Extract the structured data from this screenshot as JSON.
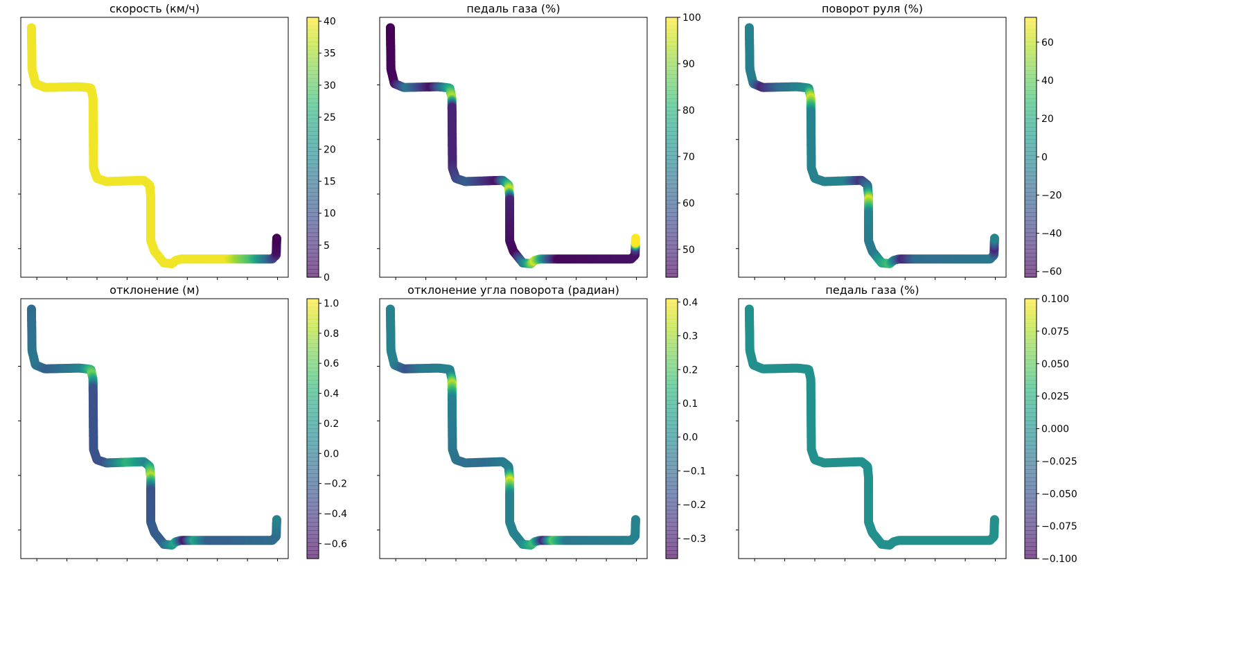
{
  "chart_data": [
    {
      "type": "scatter",
      "title": "скорость (км/ч)",
      "colormap": "viridis",
      "colorbar": {
        "min": 0,
        "max": 40.6,
        "ticks": [
          "0",
          "5",
          "10",
          "15",
          "20",
          "25",
          "30",
          "35",
          "40"
        ],
        "tick_values": [
          0,
          5,
          10,
          15,
          20,
          25,
          30,
          35,
          40
        ]
      },
      "color_profile": [
        [
          0,
          0.98
        ],
        [
          0.86,
          0.98
        ],
        [
          0.88,
          0.85
        ],
        [
          0.91,
          0.7
        ],
        [
          0.94,
          0.4
        ],
        [
          0.97,
          0.05
        ],
        [
          1.0,
          0.0
        ]
      ]
    },
    {
      "type": "scatter",
      "title": "педаль газа (%)",
      "colormap": "viridis",
      "colorbar": {
        "min": 44,
        "max": 100,
        "ticks": [
          "50",
          "60",
          "70",
          "80",
          "90",
          "100"
        ],
        "tick_values": [
          50,
          60,
          70,
          80,
          90,
          100
        ]
      },
      "color_profile": [
        [
          0,
          0.0
        ],
        [
          0.12,
          0.02
        ],
        [
          0.15,
          0.4
        ],
        [
          0.2,
          0.05
        ],
        [
          0.26,
          0.9
        ],
        [
          0.28,
          0.1
        ],
        [
          0.4,
          0.1
        ],
        [
          0.46,
          0.3
        ],
        [
          0.52,
          0.05
        ],
        [
          0.56,
          0.95
        ],
        [
          0.58,
          0.1
        ],
        [
          0.7,
          0.02
        ],
        [
          0.73,
          0.5
        ],
        [
          0.75,
          0.95
        ],
        [
          0.78,
          0.3
        ],
        [
          0.8,
          0.02
        ],
        [
          0.97,
          0.05
        ],
        [
          0.98,
          0.2
        ],
        [
          0.99,
          1.0
        ],
        [
          1.0,
          1.0
        ]
      ]
    },
    {
      "type": "scatter",
      "title": "поворот руля (%)",
      "colormap": "viridis",
      "colorbar": {
        "min": -63,
        "max": 73,
        "ticks": [
          "−60",
          "−40",
          "−20",
          "0",
          "20",
          "40",
          "60"
        ],
        "tick_values": [
          -60,
          -40,
          -20,
          0,
          20,
          40,
          60
        ]
      },
      "color_profile": [
        [
          0,
          0.45
        ],
        [
          0.12,
          0.42
        ],
        [
          0.14,
          0.1
        ],
        [
          0.18,
          0.35
        ],
        [
          0.24,
          0.5
        ],
        [
          0.26,
          0.95
        ],
        [
          0.29,
          0.45
        ],
        [
          0.5,
          0.45
        ],
        [
          0.53,
          0.15
        ],
        [
          0.56,
          0.45
        ],
        [
          0.58,
          0.95
        ],
        [
          0.61,
          0.45
        ],
        [
          0.7,
          0.4
        ],
        [
          0.74,
          0.7
        ],
        [
          0.77,
          0.1
        ],
        [
          0.8,
          0.35
        ],
        [
          0.96,
          0.4
        ],
        [
          0.98,
          0.1
        ],
        [
          1.0,
          0.45
        ]
      ]
    },
    {
      "type": "scatter",
      "title": "отклонение (м)",
      "colormap": "viridis",
      "colorbar": {
        "min": -0.7,
        "max": 1.03,
        "ticks": [
          "−0.6",
          "−0.4",
          "−0.2",
          "0.0",
          "0.2",
          "0.4",
          "0.6",
          "0.8",
          "1.0"
        ],
        "tick_values": [
          -0.6,
          -0.4,
          -0.2,
          0.0,
          0.2,
          0.4,
          0.6,
          0.8,
          1.0
        ]
      },
      "color_profile": [
        [
          0,
          0.35
        ],
        [
          0.12,
          0.4
        ],
        [
          0.15,
          0.3
        ],
        [
          0.22,
          0.45
        ],
        [
          0.25,
          0.8
        ],
        [
          0.28,
          0.25
        ],
        [
          0.45,
          0.25
        ],
        [
          0.5,
          0.65
        ],
        [
          0.54,
          0.45
        ],
        [
          0.57,
          0.9
        ],
        [
          0.6,
          0.25
        ],
        [
          0.72,
          0.3
        ],
        [
          0.75,
          0.6
        ],
        [
          0.77,
          0.05
        ],
        [
          0.79,
          0.6
        ],
        [
          0.82,
          0.3
        ],
        [
          0.97,
          0.35
        ],
        [
          1.0,
          0.45
        ]
      ]
    },
    {
      "type": "scatter",
      "title": "отклонение угла поворота (радиан)",
      "colormap": "viridis",
      "colorbar": {
        "min": -0.36,
        "max": 0.41,
        "ticks": [
          "−0.3",
          "−0.2",
          "−0.1",
          "0.0",
          "0.1",
          "0.2",
          "0.3",
          "0.4"
        ],
        "tick_values": [
          -0.3,
          -0.2,
          -0.1,
          0.0,
          0.1,
          0.2,
          0.3,
          0.4
        ]
      },
      "color_profile": [
        [
          0,
          0.45
        ],
        [
          0.12,
          0.45
        ],
        [
          0.15,
          0.25
        ],
        [
          0.18,
          0.4
        ],
        [
          0.25,
          0.45
        ],
        [
          0.27,
          0.9
        ],
        [
          0.3,
          0.45
        ],
        [
          0.5,
          0.35
        ],
        [
          0.56,
          0.45
        ],
        [
          0.58,
          0.95
        ],
        [
          0.61,
          0.45
        ],
        [
          0.72,
          0.45
        ],
        [
          0.75,
          0.7
        ],
        [
          0.77,
          0.1
        ],
        [
          0.79,
          0.75
        ],
        [
          0.82,
          0.4
        ],
        [
          1.0,
          0.45
        ]
      ]
    },
    {
      "type": "scatter",
      "title": "педаль газа (%)",
      "colormap": "viridis",
      "colorbar": {
        "min": -0.1,
        "max": 0.1,
        "ticks": [
          "−0.100",
          "−0.075",
          "−0.050",
          "−0.025",
          "0.000",
          "0.025",
          "0.050",
          "0.075",
          "0.100"
        ],
        "tick_values": [
          -0.1,
          -0.075,
          -0.05,
          -0.025,
          0.0,
          0.025,
          0.05,
          0.075,
          0.1
        ]
      },
      "color_profile": [
        [
          0,
          0.5
        ],
        [
          1.0,
          0.5
        ]
      ]
    }
  ]
}
